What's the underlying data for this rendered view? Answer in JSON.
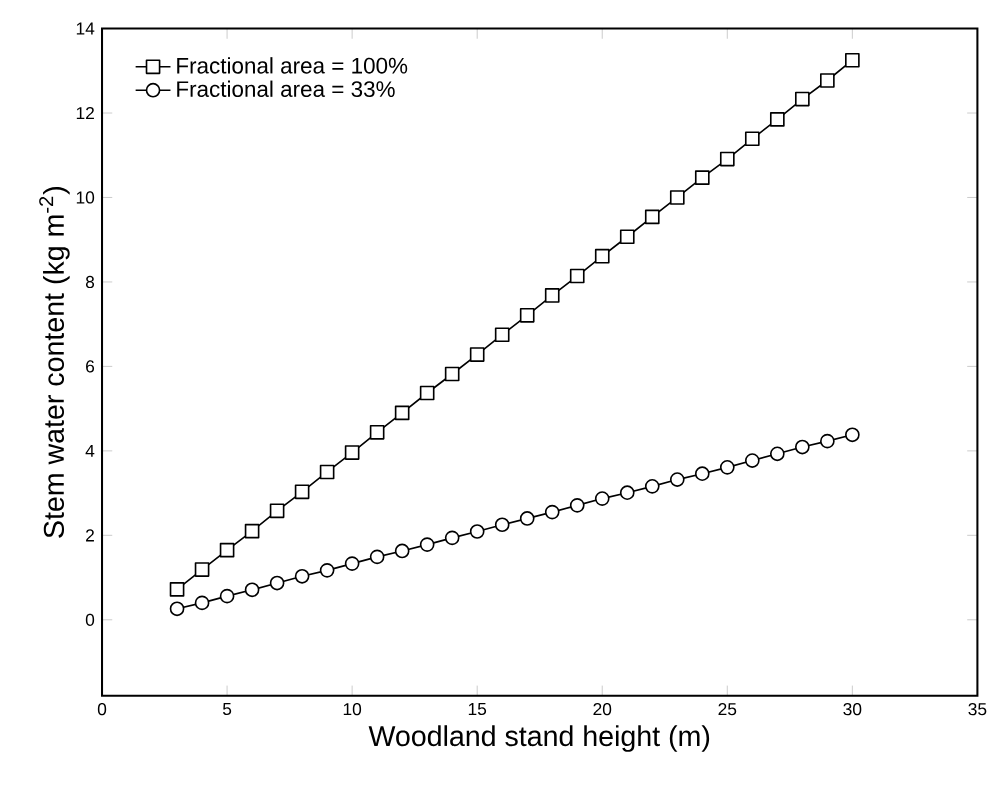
{
  "chart_data": {
    "type": "line",
    "xlabel": "Woodland stand height (m)",
    "ylabel": "Stem water content (kg m$^{-2}$)",
    "x": [
      3,
      4,
      5,
      6,
      7,
      8,
      9,
      10,
      11,
      12,
      13,
      14,
      15,
      16,
      17,
      18,
      19,
      20,
      21,
      22,
      23,
      24,
      25,
      26,
      27,
      28,
      29,
      30
    ],
    "series": [
      {
        "name": "Fractional area = 100%",
        "color": "#000000",
        "marker": "square",
        "values": [
          0.72,
          1.19,
          1.65,
          2.1,
          2.58,
          3.03,
          3.5,
          3.96,
          4.44,
          4.9,
          5.37,
          5.82,
          6.28,
          6.75,
          7.21,
          7.68,
          8.14,
          8.61,
          9.07,
          9.54,
          10.0,
          10.47,
          10.91,
          11.39,
          11.85,
          12.33,
          12.77,
          13.25
        ]
      },
      {
        "name": "Fractional area =   33%",
        "color": "#000000",
        "marker": "circle",
        "values": [
          0.26,
          0.4,
          0.56,
          0.71,
          0.87,
          1.03,
          1.17,
          1.33,
          1.49,
          1.63,
          1.78,
          1.94,
          2.09,
          2.25,
          2.4,
          2.55,
          2.71,
          2.87,
          3.01,
          3.16,
          3.32,
          3.46,
          3.61,
          3.77,
          3.93,
          4.09,
          4.23,
          4.38
        ]
      }
    ],
    "xlim": [
      0,
      35
    ],
    "ylim": [
      -1.8,
      14
    ],
    "xticks": [
      0,
      5,
      10,
      15,
      20,
      25,
      30,
      35
    ],
    "yticks": [
      0,
      2,
      4,
      6,
      8,
      10,
      12,
      14
    ],
    "grid": false,
    "legend": "top left",
    "line_style": "solid"
  }
}
